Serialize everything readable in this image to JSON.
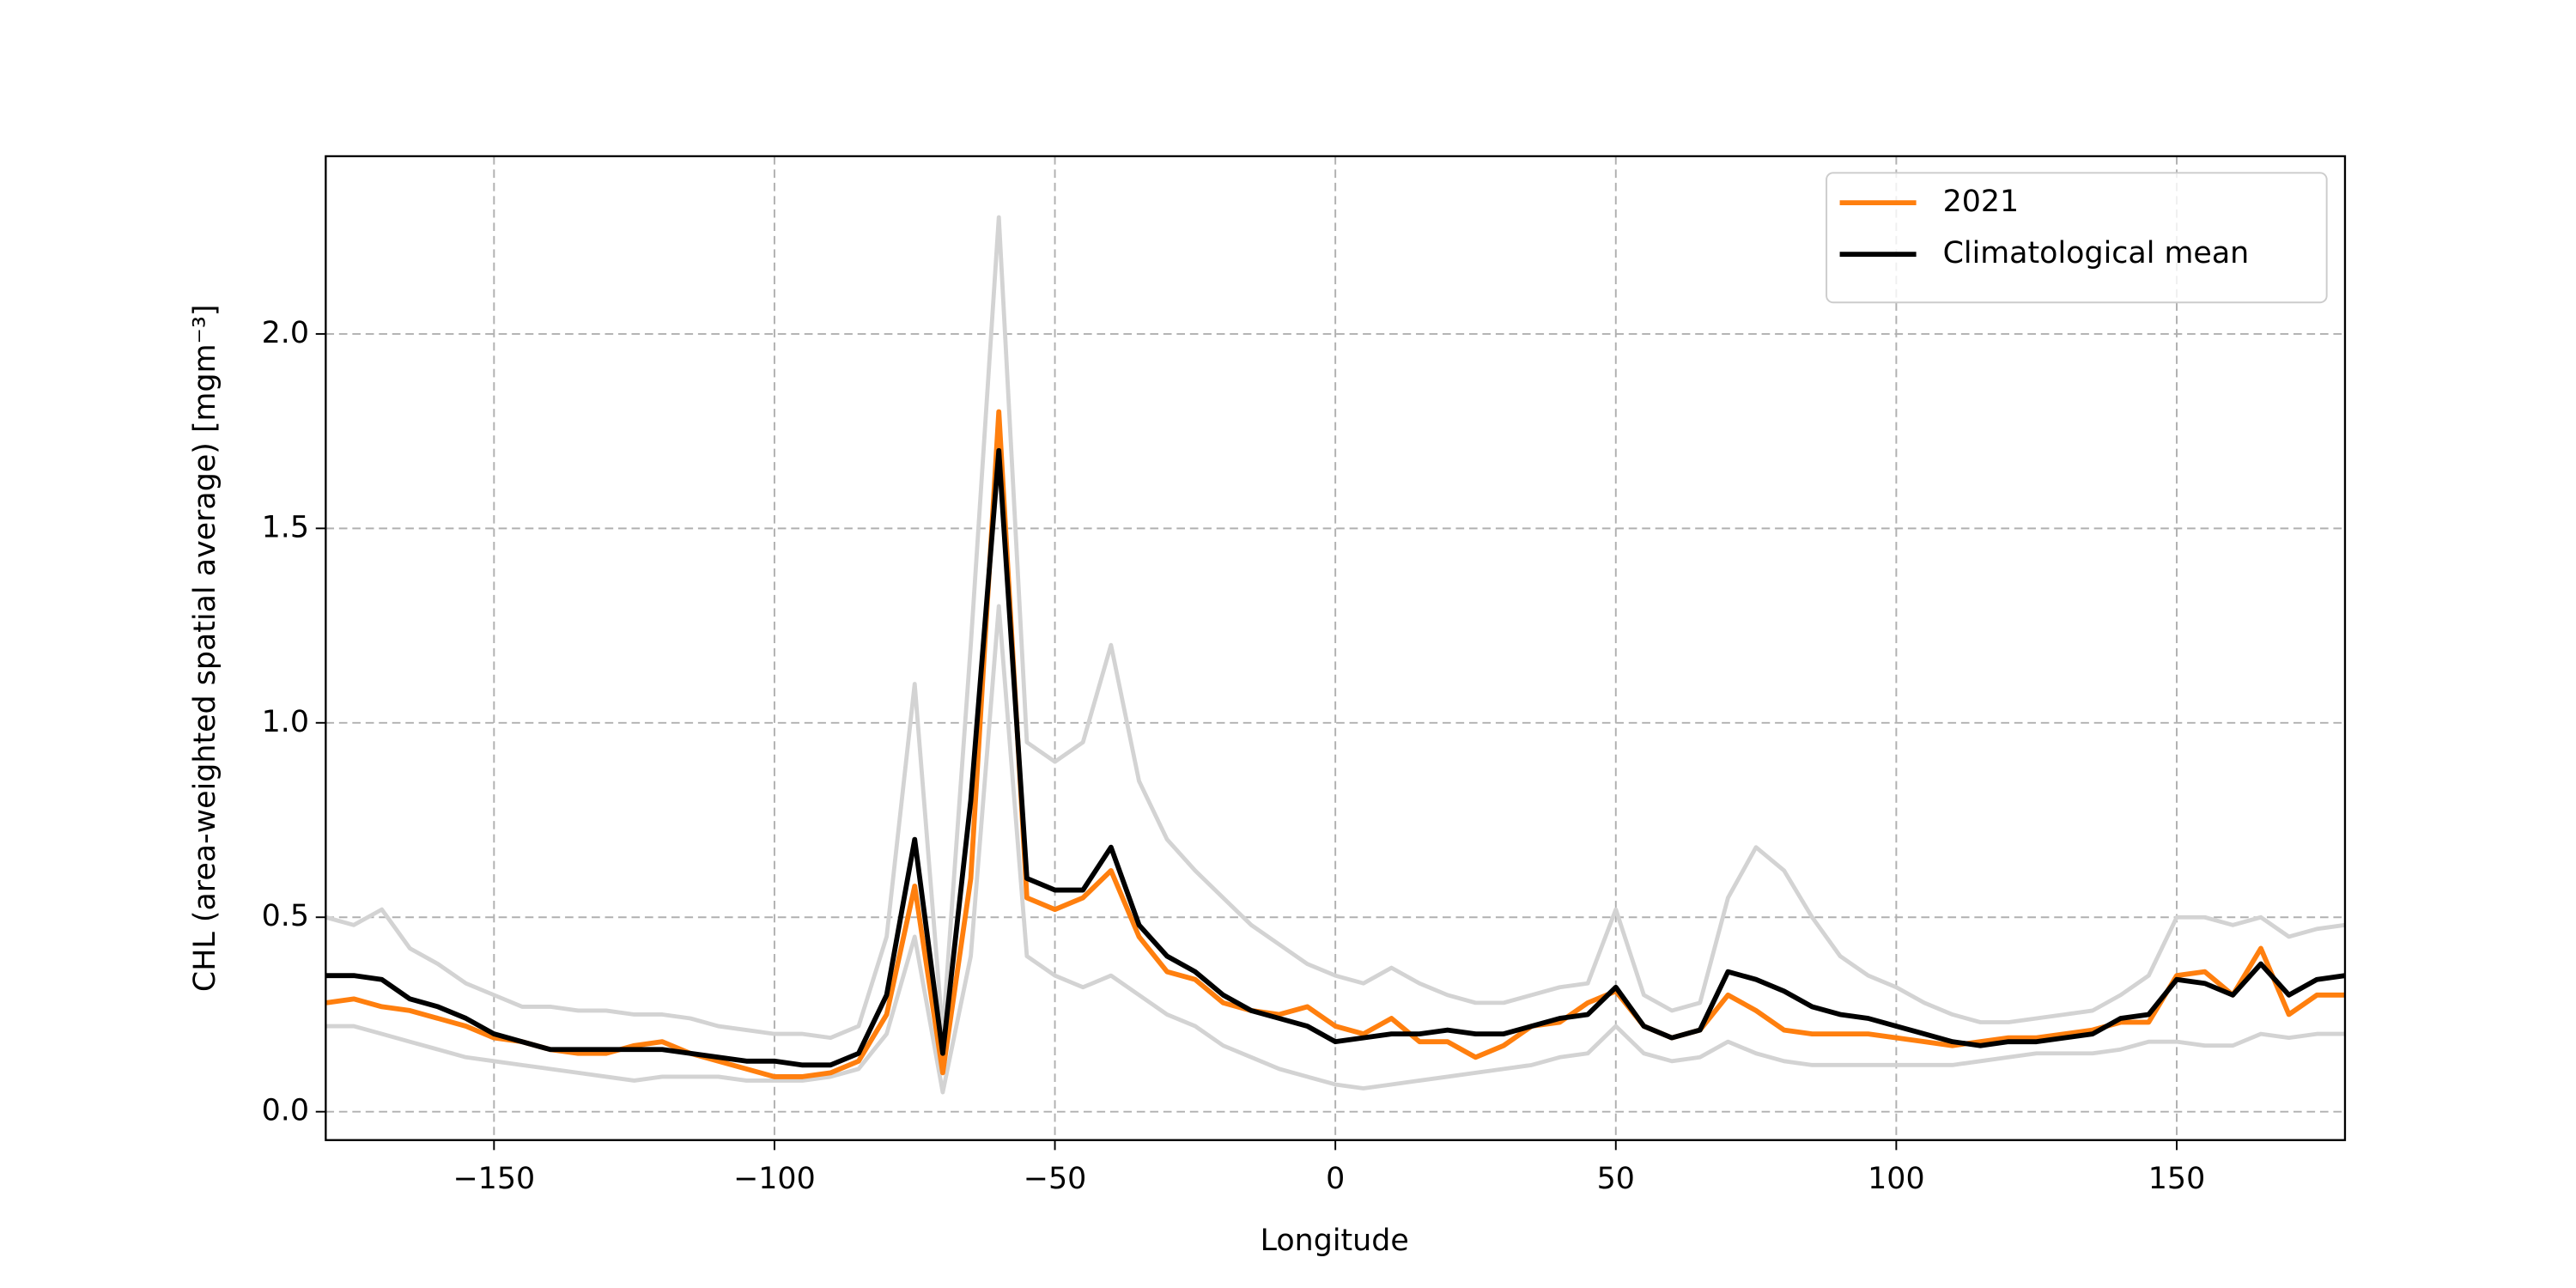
{
  "chart_data": {
    "type": "line",
    "xlabel": "Longitude",
    "ylabel": "CHL (area-weighted spatial average) [mgm⁻³]",
    "x": [
      -180,
      -175,
      -170,
      -165,
      -160,
      -155,
      -150,
      -145,
      -140,
      -135,
      -130,
      -125,
      -120,
      -115,
      -110,
      -105,
      -100,
      -95,
      -90,
      -85,
      -80,
      -75,
      -70,
      -65,
      -60,
      -55,
      -50,
      -45,
      -40,
      -35,
      -30,
      -25,
      -20,
      -15,
      -10,
      -5,
      0,
      5,
      10,
      15,
      20,
      25,
      30,
      35,
      40,
      45,
      50,
      55,
      60,
      65,
      70,
      75,
      80,
      85,
      90,
      95,
      100,
      105,
      110,
      115,
      120,
      125,
      130,
      135,
      140,
      145,
      150,
      155,
      160,
      165,
      170,
      175,
      180
    ],
    "series": [
      {
        "color": "#d3d3d3",
        "values": [
          0.5,
          0.48,
          0.52,
          0.42,
          0.38,
          0.33,
          0.3,
          0.27,
          0.27,
          0.26,
          0.26,
          0.25,
          0.25,
          0.24,
          0.22,
          0.21,
          0.2,
          0.2,
          0.19,
          0.22,
          0.45,
          1.1,
          0.2,
          1.2,
          2.3,
          0.95,
          0.9,
          0.95,
          1.2,
          0.85,
          0.7,
          0.62,
          0.55,
          0.48,
          0.43,
          0.38,
          0.35,
          0.33,
          0.37,
          0.33,
          0.3,
          0.28,
          0.28,
          0.3,
          0.32,
          0.33,
          0.52,
          0.3,
          0.26,
          0.28,
          0.55,
          0.68,
          0.62,
          0.5,
          0.4,
          0.35,
          0.32,
          0.28,
          0.25,
          0.23,
          0.23,
          0.24,
          0.25,
          0.26,
          0.3,
          0.35,
          0.5,
          0.5,
          0.48,
          0.5,
          0.45,
          0.47,
          0.48
        ]
      },
      {
        "color": "#d3d3d3",
        "values": [
          0.22,
          0.22,
          0.2,
          0.18,
          0.16,
          0.14,
          0.13,
          0.12,
          0.11,
          0.1,
          0.09,
          0.08,
          0.09,
          0.09,
          0.09,
          0.08,
          0.08,
          0.08,
          0.09,
          0.11,
          0.2,
          0.45,
          0.05,
          0.4,
          1.3,
          0.4,
          0.35,
          0.32,
          0.35,
          0.3,
          0.25,
          0.22,
          0.17,
          0.14,
          0.11,
          0.09,
          0.07,
          0.06,
          0.07,
          0.08,
          0.09,
          0.1,
          0.11,
          0.12,
          0.14,
          0.15,
          0.22,
          0.15,
          0.13,
          0.14,
          0.18,
          0.15,
          0.13,
          0.12,
          0.12,
          0.12,
          0.12,
          0.12,
          0.12,
          0.13,
          0.14,
          0.15,
          0.15,
          0.15,
          0.16,
          0.18,
          0.18,
          0.17,
          0.17,
          0.2,
          0.19,
          0.2,
          0.2
        ]
      },
      {
        "name": "2021",
        "color": "#ff7f0e",
        "values": [
          0.28,
          0.29,
          0.27,
          0.26,
          0.24,
          0.22,
          0.19,
          0.18,
          0.16,
          0.15,
          0.15,
          0.17,
          0.18,
          0.15,
          0.13,
          0.11,
          0.09,
          0.09,
          0.1,
          0.13,
          0.25,
          0.58,
          0.1,
          0.6,
          1.8,
          0.55,
          0.52,
          0.55,
          0.62,
          0.45,
          0.36,
          0.34,
          0.28,
          0.26,
          0.25,
          0.27,
          0.22,
          0.2,
          0.24,
          0.18,
          0.18,
          0.14,
          0.17,
          0.22,
          0.23,
          0.28,
          0.31,
          0.22,
          0.19,
          0.21,
          0.3,
          0.26,
          0.21,
          0.2,
          0.2,
          0.2,
          0.19,
          0.18,
          0.17,
          0.18,
          0.19,
          0.19,
          0.2,
          0.21,
          0.23,
          0.23,
          0.35,
          0.36,
          0.3,
          0.42,
          0.25,
          0.3,
          0.3
        ]
      },
      {
        "name": "Climatological mean",
        "color": "#000000",
        "values": [
          0.35,
          0.35,
          0.34,
          0.29,
          0.27,
          0.24,
          0.2,
          0.18,
          0.16,
          0.16,
          0.16,
          0.16,
          0.16,
          0.15,
          0.14,
          0.13,
          0.13,
          0.12,
          0.12,
          0.15,
          0.3,
          0.7,
          0.15,
          0.8,
          1.7,
          0.6,
          0.57,
          0.57,
          0.68,
          0.48,
          0.4,
          0.36,
          0.3,
          0.26,
          0.24,
          0.22,
          0.18,
          0.19,
          0.2,
          0.2,
          0.21,
          0.2,
          0.2,
          0.22,
          0.24,
          0.25,
          0.32,
          0.22,
          0.19,
          0.21,
          0.36,
          0.34,
          0.31,
          0.27,
          0.25,
          0.24,
          0.22,
          0.2,
          0.18,
          0.17,
          0.18,
          0.18,
          0.19,
          0.2,
          0.24,
          0.25,
          0.34,
          0.33,
          0.3,
          0.38,
          0.3,
          0.34,
          0.35
        ]
      }
    ],
    "xlim": [
      -180,
      180
    ],
    "ylim": [
      -0.073,
      2.457
    ],
    "xticks": [
      {
        "value": -150,
        "label": "−150"
      },
      {
        "value": -100,
        "label": "−100"
      },
      {
        "value": -50,
        "label": "−50"
      },
      0,
      50,
      100,
      150
    ],
    "yticks": [
      {
        "value": 0,
        "label": "0.0"
      },
      0.5,
      {
        "value": 1,
        "label": "1.0"
      },
      1.5,
      {
        "value": 2,
        "label": "2.0"
      }
    ],
    "grid": true,
    "legend": "upper right"
  }
}
